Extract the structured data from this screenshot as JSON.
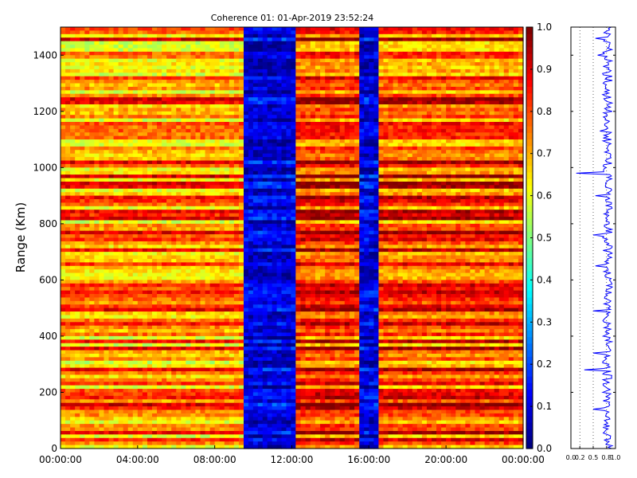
{
  "chart_data": [
    {
      "type": "heatmap",
      "title": "Coherence 01: 01-Apr-2019 23:52:24",
      "xlabel": "",
      "ylabel": "Range (Km)",
      "x_ticks": [
        "00:00:00",
        "04:00:00",
        "08:00:00",
        "12:00:00",
        "16:00:00",
        "20:00:00",
        "00:00:00"
      ],
      "x_range_hours": [
        0,
        24
      ],
      "y_ticks": [
        0,
        200,
        400,
        600,
        800,
        1000,
        1200,
        1400
      ],
      "ylim": [
        0,
        1500
      ],
      "colormap": "jet",
      "colorbar": {
        "range": [
          0.0,
          1.0
        ],
        "ticks": [
          "0.0",
          "0.1",
          "0.2",
          "0.3",
          "0.4",
          "0.5",
          "0.6",
          "0.7",
          "0.8",
          "0.9",
          "1.0"
        ]
      },
      "segments": [
        {
          "start_hour": 0.0,
          "end_hour": 9.5,
          "mean_coherence": 0.75,
          "note": "high coherence, orange/yellow bands"
        },
        {
          "start_hour": 9.5,
          "end_hour": 12.2,
          "mean_coherence": 0.1,
          "note": "low coherence, blue"
        },
        {
          "start_hour": 12.2,
          "end_hour": 15.5,
          "mean_coherence": 0.85,
          "note": "high coherence, red bands"
        },
        {
          "start_hour": 15.5,
          "end_hour": 16.5,
          "mean_coherence": 0.1,
          "note": "low coherence, blue"
        },
        {
          "start_hour": 16.5,
          "end_hour": 24.0,
          "mean_coherence": 0.82,
          "note": "high coherence, red/orange bands"
        }
      ]
    },
    {
      "type": "line",
      "title": "",
      "xlabel": "",
      "ylabel": "",
      "x_ticks": [
        "0.0",
        "0.2",
        "0.5",
        "0.8",
        "1.0"
      ],
      "xlim": [
        0,
        1
      ],
      "ylim": [
        0,
        1500
      ],
      "gridlines_x": [
        0.2,
        0.5,
        0.8
      ],
      "typical_value": 0.82,
      "dips": [
        {
          "range_km": 1460,
          "value": 0.55
        },
        {
          "range_km": 1400,
          "value": 0.6
        },
        {
          "range_km": 1130,
          "value": 0.65
        },
        {
          "range_km": 980,
          "value": 0.12
        },
        {
          "range_km": 900,
          "value": 0.55
        },
        {
          "range_km": 760,
          "value": 0.5
        },
        {
          "range_km": 650,
          "value": 0.55
        },
        {
          "range_km": 490,
          "value": 0.55
        },
        {
          "range_km": 490,
          "value": 0.5
        },
        {
          "range_km": 340,
          "value": 0.5
        },
        {
          "range_km": 280,
          "value": 0.3
        },
        {
          "range_km": 140,
          "value": 0.5
        }
      ]
    }
  ]
}
